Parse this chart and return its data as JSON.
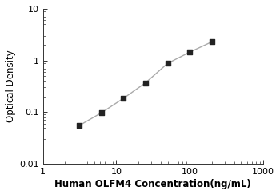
{
  "x": [
    3.125,
    6.25,
    12.5,
    25,
    50,
    100,
    200
  ],
  "y": [
    0.055,
    0.097,
    0.185,
    0.37,
    0.88,
    1.45,
    2.3
  ],
  "xlim": [
    1,
    1000
  ],
  "ylim": [
    0.01,
    10
  ],
  "xlabel": "Human OLFM4 Concentration(ng/mL)",
  "ylabel": "Optical Density",
  "line_color": "#aaaaaa",
  "marker_color": "#222222",
  "marker": "s",
  "marker_size": 4.5,
  "line_width": 1.0,
  "background_color": "#ffffff",
  "xlabel_fontsize": 8.5,
  "ylabel_fontsize": 8.5,
  "tick_labelsize": 8,
  "ytick_labels": [
    "0.01",
    "0.1",
    "1",
    "10"
  ],
  "ytick_values": [
    0.01,
    0.1,
    1,
    10
  ],
  "xtick_labels": [
    "1",
    "10",
    "100",
    "1000"
  ],
  "xtick_values": [
    1,
    10,
    100,
    1000
  ]
}
